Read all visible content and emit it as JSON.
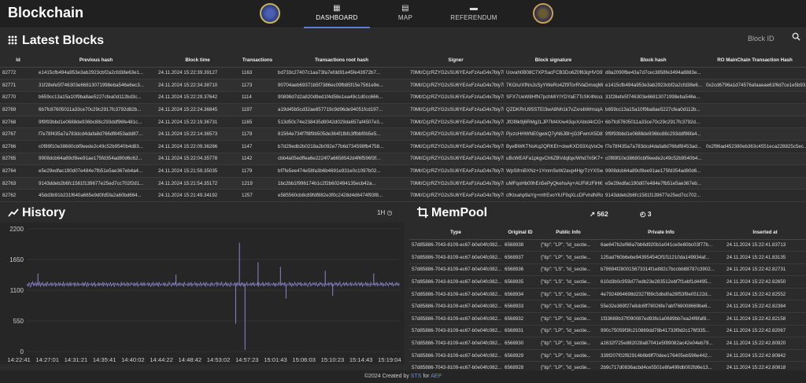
{
  "app": {
    "title": "Blockchain"
  },
  "nav": {
    "tabs": [
      {
        "label": "DASHBOARD",
        "icon": "grid-icon"
      },
      {
        "label": "MAP",
        "icon": "map-icon"
      },
      {
        "label": "REFERENDUM",
        "icon": "folder-icon"
      }
    ]
  },
  "latest_blocks": {
    "title": "Latest Blocks",
    "search_placeholder": "Block ID",
    "columns": [
      "Id",
      "Previous hash",
      "Block time",
      "Transactions",
      "Transactions root hash",
      "Signer",
      "Block signature",
      "Block hash",
      "RO MainChain Transaction Hash"
    ],
    "rows": [
      [
        "82772",
        "e1415cfb494a953e3ab2923cbf2a2cfd38e63e1...",
        "24.11.2024 15:22:39.39127",
        "1163",
        "bd733c27407c1aa73fa7efdd91e45fe43972b7...",
        "70Mt/CrjzRZYG2sSU6YEAxFzAuG4x7bly7lHWu...",
        "Uovah0B08C7XPSacFCB3Do6Z0f63qHVG9TB...",
        "d8a2090fbe43a7d7cec3858fe3494a8883e...",
        ""
      ],
      [
        "82771",
        "31f28efe5f746303e66813071998eba546e6ec3...",
        "24.11.2024 15:22:34.38710",
        "1173",
        "90704aeb69371b5f7386ec09fb85f15e7561e9e...",
        "70Mt/CrjzRZYG2sSU6YEAxFzAuG4x7bly7lHWu...",
        "7KO/u/XfNnJsSyYWeRo4Zf9TorRVaDmoqMiZ...",
        "e1415cfb494a953e3ab2923cbf2a2cfd38e6...",
        "0x2cd6796a1d74576afaaeae61f6d7ce1e5b93..."
      ],
      [
        "82770",
        "b659cc13a15a10f9ba8ae5227cfea0d112bd3c...",
        "24.11.2024 15:22:29.37642",
        "1114",
        "90898d7d2a820d9ed1f4d58e1ea49c1d0cc666...",
        "70Mt/CrjzRZYG2sSU6YEAxFzAuG4x7bly7lHWu...",
        "SFX7UeW8HfN7pchMiYIYDYaE7TcSK4NccuRJ...",
        "31f28efe5f746303e66813071998eba546e...",
        ""
      ],
      [
        "82769",
        "6b7fc87605011a33ce70c29c2917fc3792d82b...",
        "24.11.2024 15:22:24.36845",
        "1197",
        "a19d45b5cd32ae857719c9d96de94051fcd197...",
        "70Mt/CrjzRZYG2sSU6YEAxFzAuG4x7bly7lHWu...",
        "QZDKRrU95STEI3wA8Nh1k7vZxrebWmsqA7v0...",
        "b659cc13a15a10f9ba8ae5227cfea0d112b...",
        ""
      ],
      [
        "82768",
        "9f9f93bbd1e0688de936bc88c293ddf96fe481c...",
        "24.11.2024 15:22:19.36731",
        "1165",
        "513d50c74e238435d9042d029da657af4507e3...",
        "70Mt/CrjzRZYG2sSU6YEAxFzAuG4x7bly7lHWu...",
        "JfGf8k9j6RMg2LJP7M4X/w43qvXAbId4rCG+4V...",
        "6b7fc87605011a33ce70c29c2917fc3792d...",
        ""
      ],
      [
        "82767",
        "f7e78f435a7a783dcd4dafa8d766df8453add87...",
        "24.11.2024 15:22:14.36573",
        "1179",
        "81564e734f7f8f9b505de364f1fbfc3ffbbf0b5e5...",
        "70Mt/CrjzRZYG2sSU6YEAxFzAuG4x7bly7lHWu...",
        "PjvzcHHWNE0gwkQ7yN6JBl+jG3FwmX5D8f7Z...",
        "9f9f93bbd1e0688de936bc88c293ddf96fa4...",
        ""
      ],
      [
        "82766",
        "c0f89f10e38680cbf9eede2c49c52b9540b4d83...",
        "24.11.2024 15:22:09.36286",
        "1147",
        "b7d29edb2b0218a2b092e77b6d734598fb4758...",
        "70Mt/CrjzRZYG2sSU6YEAxFzAuG4x7bly7lHWu...",
        "ByeBWKTNsKq2QRKEt+ckwKXD93XqVoOwlMe...",
        "f7e78f435a7a783dcd4dafa8d766df8453ad...",
        "0x2f86ad452380eb363c4551eca228825c5ec..."
      ],
      [
        "82765",
        "9908dcb64a89cf8ee91ae175fd354ad80d6c62...",
        "24.11.2024 15:22:04.35778",
        "1142",
        "cbb4a05edffea6e2224f7a6658542d4f6f596f3f...",
        "70Mt/CrjzRZYG2sSU6YEAxFzAuG4x7bly7lHWu...",
        "uBcWEAFa1pkgvCh6ZBVdqfqx/Whd7n5K7+Ge...",
        "c0f89f10e38680cbf9eede2c49c52b9540b4...",
        ""
      ],
      [
        "82764",
        "e5e29edfac190d07e484e7fb51e5ae367eb4a4...",
        "24.11.2024 15:21:59.35035",
        "1179",
        "bf7fe5ee474e58fa3b6b4691e931e0c1097b02...",
        "70Mt/CrjzRZYG2sSU6YEAxFzAuG4x7bly7lHWu...",
        "WpSifrnBXNz+1YmmSeW2avp4HgrTzYXSwohF...",
        "9908dcb64a89cf8ee91ae175fd354ad80d6...",
        ""
      ],
      [
        "82763",
        "9143ddeb2b6fc1581f139677e25ed7cc702f2d1...",
        "24.11.2024 15:21:54.35172",
        "1219",
        "1bc2bb1f996174b1c2f2b602494135ecb42a...",
        "70Mt/CrjzRZYG2sSU6YEAxFzAuG4x7bly7lHWu...",
        "uMFqoHb00hEn5ePyQkehsAy+AUFiKzFiHKbRJ...",
        "e5e29edfac190d07e484e7fb51e5ae367eb...",
        ""
      ],
      [
        "82762",
        "45dd3b91b231f640a665e9d0fd5fa2a60bd664...",
        "24.11.2024 15:21:49.34192",
        "1257",
        "e585560cb8c89fdf882e3f0c2428d4d6474f93f8...",
        "70Mt/CrjzRZYG2sSU6YEAxFzAuG4x7bly7lHWu...",
        "cfKtxahp9aYg+mfrEvoYiUF9qXLcDFvhdNRotH...",
        "9143ddeb2b6fc1581f139677e25ed7cc702...",
        ""
      ]
    ]
  },
  "history": {
    "title": "History",
    "range_label": "1H",
    "y_ticks": [
      "2200",
      "1650",
      "1100",
      "550",
      "0"
    ],
    "x_ticks": [
      "14:22:41",
      "14:27:01",
      "14:31:21",
      "14:35:41",
      "14:40:02",
      "14:44:22",
      "14:48:42",
      "14:53:02",
      "14:57:23",
      "15:01:43",
      "15:06:03",
      "15:10:23",
      "15:14:43",
      "15:19:04"
    ]
  },
  "mempool": {
    "title": "MemPool",
    "stat_trend": "562",
    "stat_history": "3",
    "columns": [
      "Type",
      "Original ID",
      "Public Info",
      "Private Info",
      "Inserted at"
    ],
    "rows": [
      [
        "57d85886-7043-8109-ec67-b0e04fc082...",
        "6568938",
        "{\"tip\": \"LP\", \"id_sectie...",
        "6ae647b2ef66a7bb6d920b1e041ce0e60bc03f77b...",
        "24.11.2024 15:22:41.83713"
      ],
      [
        "57d85886-7043-8109-ec67-b0e04fc082...",
        "6568937",
        "{\"tip\": \"LP\", \"id_sectie...",
        "125ad760b6ebe94395454Of1f11210da149934af...",
        "24.11.2024 15:22:41.83135"
      ],
      [
        "57d85886-7043-8109-ec67-b0e04fc082...",
        "6568936",
        "{\"tip\": \"LS\", \"id_sectie...",
        "b78694f280015673314f1e882c7bccbb88787c3902...",
        "24.11.2024 15:22:42.82731"
      ],
      [
        "57d85886-7043-8109-ec67-b0e04fc082...",
        "6568935",
        "{\"tip\": \"LS\", \"id_sectie...",
        "610d3b0c959d77edb23e283512ebf7f1ebf1d4495...",
        "24.11.2024 15:22:42.82650"
      ],
      [
        "57d85886-7043-8109-ec67-b0e04fc082...",
        "6568934",
        "{\"tip\": \"LS\", \"id_sectie...",
        "4e7924864698d2327f89c5dbd0a28f53f9e05122d...",
        "24.11.2024 15:22:42.82552"
      ],
      [
        "57d85886-7043-8109-ec67-b0e04fc082...",
        "6568933",
        "{\"tip\": \"LS\", \"id_sectie...",
        "55e32e369f27e8dc6ff78026fe7abf768008669be6...",
        "24.11.2024 15:22:42.82384"
      ],
      [
        "57d85886-7043-8109-ec67-b0e04fc082...",
        "6568932",
        "{\"tip\": \"LP\", \"id_sectie...",
        "1f33669b37f090087ed93fe1a0689bb7ea24f6faf8...",
        "24.11.2024 15:22:42.82158"
      ],
      [
        "57d85886-7043-8109-ec67-b0e04fc082...",
        "6568931",
        "{\"tip\": \"LP\", \"id_sectie...",
        "990c75059f3fc210869dd78b41733f9d2c176f335...",
        "24.11.2024 15:22:42.82067"
      ],
      [
        "57d85886-7043-8109-ec67-b0e04fc082...",
        "6568930",
        "{\"tip\": \"LP\", \"id_sectie...",
        "a1632f725e882028a87041e5f89082ac42e04eb79...",
        "24.11.2024 15:22:42.80920"
      ],
      [
        "57d85886-7043-8109-ec67-b0e04fc082...",
        "6568929",
        "{\"tip\": \"LP\", \"id_sectie...",
        "339f207f02f82914b6b6ff70dee176405eb596e442...",
        "24.11.2024 15:22:42.80842"
      ],
      [
        "57d85886-7043-8109-ec67-b0e04fc082...",
        "6568928",
        "{\"tip\": \"LP\", \"id_sectie...",
        "2b9c717d0836acbd4ce5501e8fa499db002fd6e13...",
        "24.11.2024 15:22:42.80818"
      ]
    ]
  },
  "footer": {
    "prefix": "©2024 Created by",
    "by": "STS",
    "mid": "for",
    "org": "AEP"
  },
  "colors": {
    "accent": "#5b7fd0",
    "link": "#6b8fe0",
    "series": "#8a86c8",
    "background": "#2b2b2b"
  },
  "chart_data": {
    "type": "line",
    "title": "History",
    "xlabel": "",
    "ylabel": "",
    "ylim": [
      0,
      2200
    ],
    "y_ticks": [
      0,
      550,
      1100,
      1650,
      2200
    ],
    "x_ticks": [
      "14:22:41",
      "14:27:01",
      "14:31:21",
      "14:35:41",
      "14:40:02",
      "14:44:22",
      "14:48:42",
      "14:53:02",
      "14:57:23",
      "15:01:43",
      "15:06:03",
      "15:10:23",
      "15:14:43",
      "15:19:04"
    ],
    "grid": true,
    "series": [
      {
        "values": [
          1180,
          1210,
          1165,
          1240,
          1195,
          1150,
          1230,
          1205,
          1260,
          1175,
          1215,
          1190,
          1245,
          1170,
          1225,
          1200,
          1185,
          1255,
          1160,
          1220,
          1195,
          1240,
          1175,
          1210,
          1185,
          1230,
          1165,
          1250,
          1200,
          1180,
          1215,
          1195,
          1235,
          1170,
          1225,
          1205,
          1190,
          1245,
          1160,
          1220,
          1200,
          1185,
          1240,
          1175,
          1230,
          1195,
          1210,
          1180,
          1255,
          1165,
          1220,
          1200,
          1190,
          1235,
          1175,
          1215,
          1185,
          1250,
          1170,
          1225,
          1205,
          1195,
          1240,
          1160,
          1230,
          1200,
          1180,
          1245,
          1175,
          1215,
          1195,
          1210,
          1190,
          1235,
          1170,
          1225,
          1185,
          1250,
          1200,
          1165,
          1240,
          1180,
          1215,
          1205,
          1195,
          1230,
          1175,
          1220,
          1190,
          1245,
          1160,
          1210,
          1200,
          1185,
          1240,
          1175,
          1225,
          1195,
          1215,
          1180,
          1250,
          1170,
          1230,
          1205,
          1190,
          1235,
          1165,
          1220,
          1200,
          1185,
          1245,
          1175,
          1210,
          1195,
          1240,
          1160,
          1225,
          1205,
          1190,
          1230,
          1180,
          1215,
          1200,
          1170,
          1250,
          1185,
          1220,
          1195,
          1235,
          1175,
          1210,
          1190,
          1245,
          1165,
          1225,
          1200,
          1180,
          1240,
          1205,
          1215,
          1185,
          1230,
          1170,
          1220,
          1195,
          1250,
          1160,
          1210,
          1200,
          1190,
          1235,
          1175,
          1225,
          1185,
          1245,
          1180,
          1215,
          1205,
          1195,
          1240,
          1170,
          1230,
          1200,
          1165,
          1220,
          1190,
          1250,
          1175,
          1210,
          1195,
          1235,
          1185,
          1225,
          1160,
          1245,
          1205,
          1180,
          1215,
          1200,
          1190,
          1240,
          1170,
          1230,
          1195,
          1175,
          1220,
          1185,
          1250,
          1205,
          1210,
          1165,
          1235,
          1195,
          1225,
          1180,
          1245,
          1200,
          1170,
          1215,
          1190,
          1240,
          1175,
          1230,
          1205,
          1185,
          1220,
          1160,
          1250,
          1195,
          1210,
          1200,
          1180,
          1235,
          1175,
          1225,
          1190,
          1245,
          1165,
          1215,
          1205,
          1195,
          1240,
          1180,
          1230,
          1170,
          1220,
          1200,
          1185,
          1250,
          1175,
          1210,
          1195,
          1235,
          1190,
          1225,
          1160,
          1245,
          1205,
          1180,
          1215,
          1200,
          1170,
          1240,
          1185,
          1230,
          1195,
          1175,
          1220,
          1210,
          1250,
          1165,
          1235,
          1200,
          1190,
          1225,
          1180,
          1245,
          1205,
          1170,
          1215,
          1195,
          1240,
          1185,
          1230,
          1175,
          1220,
          1200,
          1160,
          1250,
          1190,
          1210,
          1205,
          1180,
          1235,
          1195,
          1225,
          1170,
          1245,
          1200,
          1185,
          1215,
          1175,
          1240,
          1190,
          1230,
          1165,
          1220,
          1205,
          1195,
          1250,
          1180,
          1210,
          1200,
          1185,
          1235,
          1175,
          1225,
          1195,
          1245,
          1170,
          1215,
          1205,
          1190,
          1240,
          1160,
          1230,
          1200,
          1180,
          1220,
          1195,
          1250,
          1175,
          1210,
          1185,
          1235,
          1205,
          1225,
          1170,
          1245,
          1195,
          1180,
          1215,
          1200,
          1190,
          1240,
          1175,
          1230,
          1165,
          1220,
          1205,
          1185,
          1250,
          1195,
          1210,
          1180,
          1235,
          1200,
          1225,
          1175,
          1245,
          1190,
          1170,
          1215,
          1205,
          1195,
          1240,
          1185,
          1230,
          1160,
          1220,
          1200,
          1180,
          1250,
          1195,
          1210,
          1175,
          1235,
          1205,
          1225,
          1190,
          1245,
          1170,
          1215,
          1200,
          1185,
          1240,
          1180,
          1230,
          1195,
          1165,
          1220,
          1205,
          1250,
          1175,
          1210,
          1190,
          1235,
          1200,
          1225,
          1180,
          1245,
          1195,
          1170,
          1215,
          1185,
          1240,
          1205,
          1230,
          1175,
          1220,
          1200,
          1160,
          1250,
          1190,
          1210,
          1195,
          1235,
          1180,
          1225,
          1205,
          1245,
          1170,
          1215,
          1185,
          1200,
          1240,
          1195,
          1230,
          1175,
          1220,
          1190,
          1250,
          1205,
          1165,
          1210,
          1200,
          1235,
          1180,
          1225,
          1195,
          1245,
          1175,
          1215,
          1190,
          1205,
          1240,
          1170,
          1230,
          1200,
          1185,
          1220,
          1195,
          1250,
          1180,
          1210,
          1205,
          1235,
          1175,
          1225,
          1190,
          1245,
          1160,
          1215,
          1200,
          1195,
          1240,
          1185,
          1230,
          1175,
          1220,
          1205,
          1170,
          1250,
          1190,
          1210,
          1200,
          1235,
          1180,
          1225,
          1195,
          1245,
          1175,
          1215,
          1205,
          1185,
          1240,
          1190,
          1230,
          1165,
          1220,
          1200,
          1180,
          1250,
          1195,
          1210,
          1175,
          1235,
          1205,
          1225,
          1190,
          1245,
          1170,
          1215,
          1200,
          1185,
          1240,
          1195,
          1230,
          1180,
          1220,
          1205
        ],
        "spikes": [
          {
            "at": 0.57,
            "value": 1950
          },
          {
            "at": 0.585,
            "value": 30
          },
          {
            "at": 0.56,
            "value": 500
          },
          {
            "at": 0.62,
            "value": 1600
          },
          {
            "at": 0.68,
            "value": 1520
          },
          {
            "at": 0.695,
            "value": 950
          },
          {
            "at": 0.8,
            "value": 1450
          },
          {
            "at": 0.82,
            "value": 1000
          },
          {
            "at": 0.93,
            "value": 1400
          },
          {
            "at": 0.03,
            "value": 1400
          },
          {
            "at": 0.4,
            "value": 1380
          }
        ]
      }
    ]
  }
}
